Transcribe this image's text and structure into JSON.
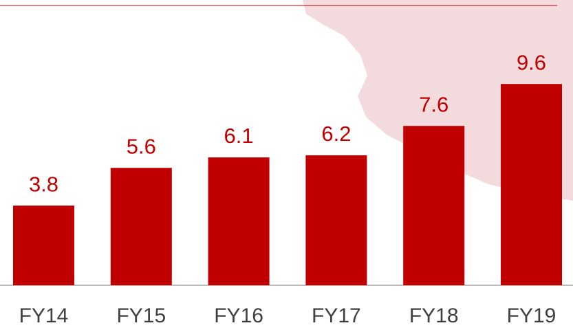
{
  "chart_data": {
    "type": "bar",
    "categories": [
      "FY14",
      "FY15",
      "FY16",
      "FY17",
      "FY18",
      "FY19"
    ],
    "values": [
      3.8,
      5.6,
      6.1,
      6.2,
      7.6,
      9.6
    ],
    "color": "#c00000"
  }
}
